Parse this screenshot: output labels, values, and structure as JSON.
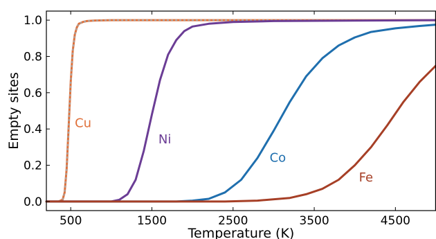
{
  "chart_data": {
    "type": "line",
    "xlabel": "Temperature (K)",
    "ylabel": "Empty sites",
    "xlim": [
      200,
      5000
    ],
    "ylim": [
      -0.05,
      1.05
    ],
    "xticks": [
      500,
      1500,
      2500,
      3500,
      4500
    ],
    "xtick_labels": [
      "500",
      "1500",
      "2500",
      "3500",
      "4500"
    ],
    "yticks": [
      0.0,
      0.2,
      0.4,
      0.6,
      0.8,
      1.0
    ],
    "ytick_labels": [
      "0.0",
      "0.2",
      "0.4",
      "0.6",
      "0.8",
      "1.0"
    ],
    "grid": false,
    "legend": "none",
    "series": [
      {
        "name": "Cu",
        "color": "#e0703a",
        "dashed_overlay": "#a6a6a6",
        "label_at": [
          550,
          0.41
        ],
        "x": [
          200,
          350,
          400,
          425,
          450,
          475,
          500,
          525,
          550,
          575,
          600,
          650,
          700,
          800,
          1000,
          5000
        ],
        "y": [
          0.0,
          0.0,
          0.01,
          0.05,
          0.18,
          0.42,
          0.66,
          0.83,
          0.92,
          0.96,
          0.98,
          0.99,
          0.995,
          0.998,
          1.0,
          1.0
        ]
      },
      {
        "name": "Ni",
        "color": "#6b3d95",
        "label_at": [
          1580,
          0.32
        ],
        "x": [
          200,
          1000,
          1100,
          1200,
          1300,
          1400,
          1500,
          1600,
          1700,
          1800,
          1900,
          2000,
          2200,
          2500,
          3000,
          5000
        ],
        "y": [
          0.0,
          0.0,
          0.01,
          0.04,
          0.12,
          0.28,
          0.48,
          0.67,
          0.81,
          0.89,
          0.94,
          0.965,
          0.98,
          0.99,
          0.995,
          1.0
        ]
      },
      {
        "name": "Co",
        "color": "#1f6fae",
        "label_at": [
          2950,
          0.22
        ],
        "x": [
          200,
          1800,
          2000,
          2200,
          2400,
          2600,
          2800,
          3000,
          3200,
          3400,
          3600,
          3800,
          4000,
          4200,
          4500,
          4800,
          5000
        ],
        "y": [
          0.0,
          0.0,
          0.005,
          0.015,
          0.05,
          0.12,
          0.24,
          0.39,
          0.55,
          0.69,
          0.79,
          0.86,
          0.905,
          0.935,
          0.955,
          0.968,
          0.975
        ]
      },
      {
        "name": "Fe",
        "color": "#a63f26",
        "label_at": [
          4050,
          0.11
        ],
        "x": [
          200,
          2400,
          2800,
          3200,
          3400,
          3600,
          3800,
          4000,
          4200,
          4400,
          4600,
          4800,
          5000
        ],
        "y": [
          0.0,
          0.0,
          0.005,
          0.02,
          0.04,
          0.07,
          0.12,
          0.2,
          0.3,
          0.42,
          0.55,
          0.66,
          0.75
        ]
      }
    ]
  }
}
